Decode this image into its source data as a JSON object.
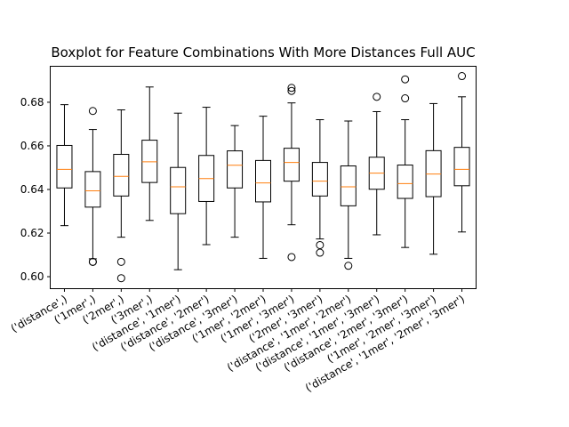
{
  "chart_data": {
    "type": "boxplot",
    "title": "Boxplot for Feature Combinations With More Distances Full AUC",
    "xlabel": "",
    "ylabel": "",
    "ylim": [
      0.5945,
      0.6965
    ],
    "yticks": [
      0.6,
      0.62,
      0.64,
      0.66,
      0.68
    ],
    "ytick_labels": [
      "0.60",
      "0.62",
      "0.64",
      "0.66",
      "0.68"
    ],
    "x_tick_rotation_deg": 30,
    "grid": false,
    "legend": "none",
    "colors": {
      "box": "#000000",
      "median": "#ff7f0e",
      "flier": "#000000"
    },
    "categories": [
      "('distance',)",
      "('1mer',)",
      "('2mer',)",
      "('3mer',)",
      "('distance', '1mer')",
      "('distance', '2mer')",
      "('distance', '3mer')",
      "('1mer', '2mer')",
      "('1mer', '3mer')",
      "('2mer', '3mer')",
      "('distance', '1mer', '2mer')",
      "('distance', '1mer', '3mer')",
      "('distance', '2mer', '3mer')",
      "('1mer', '2mer', '3mer')",
      "('distance', '1mer', '2mer', '3mer')"
    ],
    "boxes": [
      {
        "whislo": 0.6234,
        "q1": 0.6407,
        "med": 0.6492,
        "q3": 0.6602,
        "whishi": 0.6789,
        "fliers": []
      },
      {
        "whislo": 0.6082,
        "q1": 0.6319,
        "med": 0.6394,
        "q3": 0.6482,
        "whishi": 0.6675,
        "fliers": [
          0.676,
          0.6068,
          0.6068
        ]
      },
      {
        "whislo": 0.6181,
        "q1": 0.637,
        "med": 0.646,
        "q3": 0.6561,
        "whishi": 0.6765,
        "fliers": [
          0.6068,
          0.5993
        ]
      },
      {
        "whislo": 0.6258,
        "q1": 0.6432,
        "med": 0.6527,
        "q3": 0.6626,
        "whishi": 0.687,
        "fliers": []
      },
      {
        "whislo": 0.6032,
        "q1": 0.6289,
        "med": 0.6412,
        "q3": 0.6501,
        "whishi": 0.675,
        "fliers": []
      },
      {
        "whislo": 0.6147,
        "q1": 0.6345,
        "med": 0.645,
        "q3": 0.6556,
        "whishi": 0.6777,
        "fliers": []
      },
      {
        "whislo": 0.6181,
        "q1": 0.6407,
        "med": 0.6511,
        "q3": 0.6577,
        "whishi": 0.6693,
        "fliers": []
      },
      {
        "whislo": 0.6084,
        "q1": 0.6343,
        "med": 0.643,
        "q3": 0.6533,
        "whishi": 0.6736,
        "fliers": []
      },
      {
        "whislo": 0.6238,
        "q1": 0.6438,
        "med": 0.6524,
        "q3": 0.6589,
        "whishi": 0.6797,
        "fliers": [
          0.6866,
          0.6852,
          0.609
        ]
      },
      {
        "whislo": 0.6173,
        "q1": 0.637,
        "med": 0.6438,
        "q3": 0.6524,
        "whishi": 0.672,
        "fliers": [
          0.6145,
          0.611
        ]
      },
      {
        "whislo": 0.6084,
        "q1": 0.6325,
        "med": 0.6412,
        "q3": 0.6508,
        "whishi": 0.6714,
        "fliers": [
          0.605
        ]
      },
      {
        "whislo": 0.6192,
        "q1": 0.6401,
        "med": 0.6475,
        "q3": 0.6548,
        "whishi": 0.6757,
        "fliers": [
          0.6825
        ]
      },
      {
        "whislo": 0.6134,
        "q1": 0.6359,
        "med": 0.6427,
        "q3": 0.6512,
        "whishi": 0.672,
        "fliers": [
          0.6905,
          0.6818
        ]
      },
      {
        "whislo": 0.6103,
        "q1": 0.6367,
        "med": 0.6471,
        "q3": 0.6578,
        "whishi": 0.6794,
        "fliers": []
      },
      {
        "whislo": 0.6205,
        "q1": 0.6417,
        "med": 0.6492,
        "q3": 0.6593,
        "whishi": 0.6825,
        "fliers": [
          0.692
        ]
      }
    ]
  }
}
